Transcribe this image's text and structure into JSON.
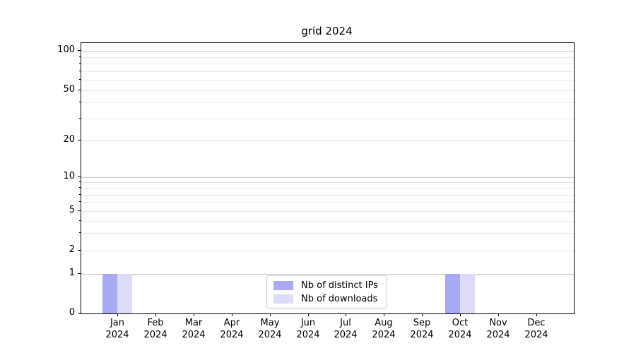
{
  "title": "grid 2024",
  "chart_data": {
    "type": "bar",
    "title": "grid 2024",
    "categories": [
      "Jan",
      "Feb",
      "Mar",
      "Apr",
      "May",
      "Jun",
      "Jul",
      "Aug",
      "Sep",
      "Oct",
      "Nov",
      "Dec"
    ],
    "x_tick_year": "2024",
    "series": [
      {
        "name": "Nb of distinct IPs",
        "color": "#a9a9f2",
        "values": [
          1,
          0,
          0,
          0,
          0,
          0,
          0,
          0,
          0,
          1,
          0,
          0
        ]
      },
      {
        "name": "Nb of downloads",
        "color": "#dcdcf8",
        "values": [
          1,
          0,
          0,
          0,
          0,
          0,
          0,
          0,
          0,
          1,
          0,
          0
        ]
      }
    ],
    "xlabel": "",
    "ylabel": "",
    "y_scale": "symlog (linear 0-1, logarithmic above 1)",
    "y_ticks": [
      0,
      1,
      2,
      5,
      10,
      20,
      50,
      100
    ],
    "y_minor_ticks": [
      3,
      4,
      6,
      7,
      8,
      9,
      30,
      40,
      60,
      70,
      80,
      90
    ],
    "y_decade_lines": [
      1,
      10,
      100
    ],
    "ylim": [
      0,
      115
    ],
    "grid": "both",
    "legend_position": "lower center",
    "colors": {
      "major_grid": "#c9c9c9",
      "minor_grid": "#e8e8e8",
      "axis": "#000000",
      "legend_border": "#cccccc",
      "background": "#ffffff"
    }
  }
}
